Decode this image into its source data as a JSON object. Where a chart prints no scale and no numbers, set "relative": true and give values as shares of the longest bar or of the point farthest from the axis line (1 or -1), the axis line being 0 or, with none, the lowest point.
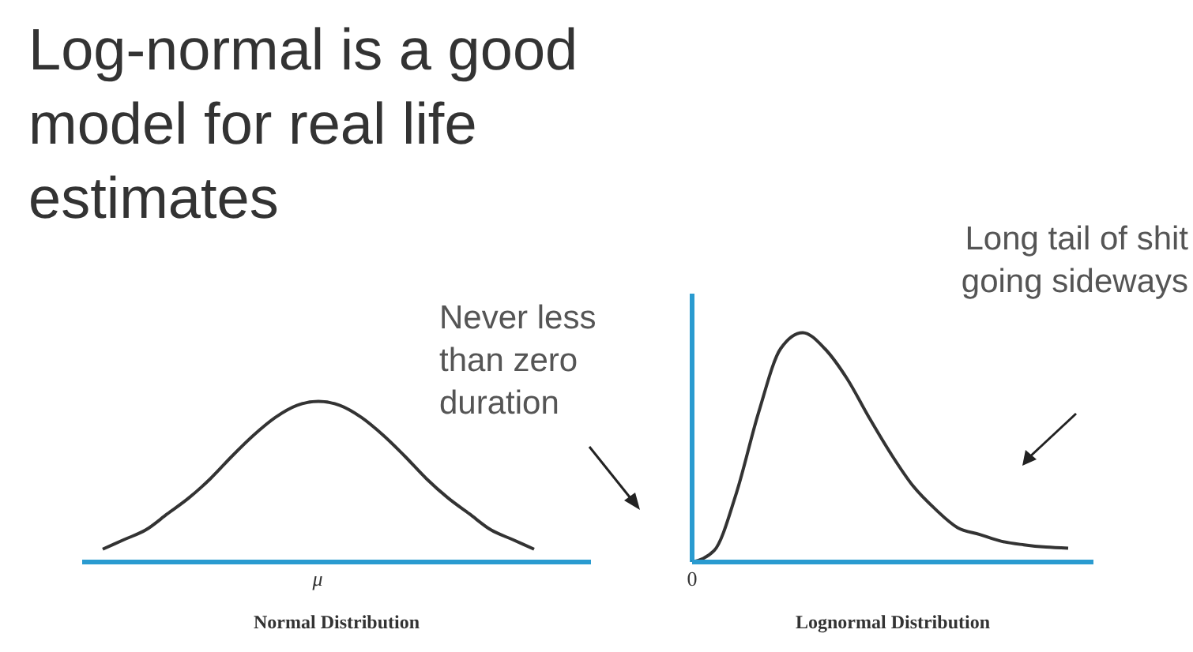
{
  "chart_data": [
    {
      "type": "line",
      "title": "Log-normal is a good model for real life estimates",
      "xlabel": "Normal Distribution",
      "relative": true,
      "line_style": "solid",
      "color": "#333333",
      "annotations": [
        "μ"
      ],
      "categories": [
        null,
        null,
        null,
        null,
        null,
        null,
        null,
        null,
        null,
        null,
        null,
        null,
        null,
        null,
        null,
        null,
        null,
        null,
        null,
        null,
        null
      ],
      "values": [
        0.08,
        0.14,
        0.2,
        0.3,
        0.4,
        0.52,
        0.66,
        0.79,
        0.9,
        0.975,
        1,
        0.975,
        0.9,
        0.79,
        0.66,
        0.52,
        0.4,
        0.3,
        0.2,
        0.14,
        0.08
      ]
    },
    {
      "type": "line",
      "xlabel": "Lognormal Distribution",
      "relative": true,
      "line_style": "solid",
      "color": "#333333",
      "annotations": [
        "0",
        "Never less than zero duration",
        "Long tail of shit going sideways"
      ],
      "categories": [
        null,
        null,
        null,
        null,
        null,
        null,
        null,
        null,
        null,
        null,
        null,
        null,
        null,
        null,
        null,
        null,
        null,
        null
      ],
      "values": [
        0,
        0.05,
        0.3,
        0.65,
        0.93,
        1,
        0.93,
        0.8,
        0.63,
        0.47,
        0.33,
        0.23,
        0.15,
        0.12,
        0.09,
        0.075,
        0.065,
        0.06
      ]
    }
  ]
}
